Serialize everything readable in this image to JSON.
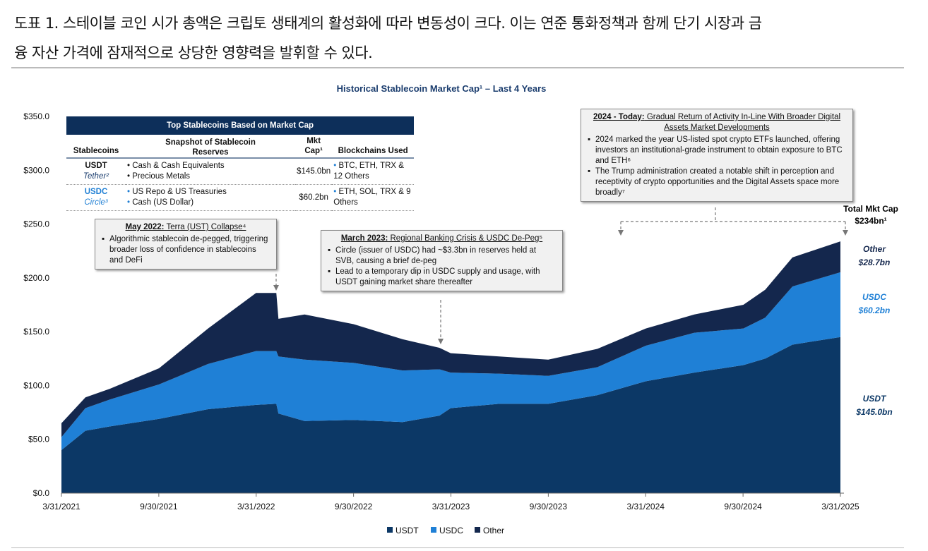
{
  "heading": {
    "line1": "도표 1. 스테이블 코인 시가 총액은 크립토 생태계의 활성화에 따라 변동성이 크다. 이는 연준 통화정책과 함께 단기 시장과 금",
    "line2": "융 자산 가격에 잠재적으로 상당한 영향력을 발휘할 수 있다."
  },
  "table": {
    "title": "Top Stablecoins Based on Market Cap",
    "headers": [
      "Stablecoins",
      "Snapshot of Stablecoin Reserves",
      "Mkt Cap¹",
      "Blockchains Used"
    ],
    "rows": [
      {
        "coin": "USDT",
        "issuer": "Tether²",
        "reserves": [
          "Cash & Cash Equivalents",
          "Precious Metals"
        ],
        "mktcap": "$145.0bn",
        "chains": "BTC, ETH, TRX & 12 Others"
      },
      {
        "coin": "USDC",
        "issuer": "Circle³",
        "reserves": [
          "US Repo & US Treasuries",
          "Cash (US Dollar)"
        ],
        "mktcap": "$60.2bn",
        "chains": "ETH, SOL, TRX & 9 Others"
      }
    ]
  },
  "annotations": {
    "terra": {
      "bold": "May 2022:",
      "title": " Terra (UST) Collapse⁴",
      "bullets": [
        "Algorithmic stablecoin de-pegged, triggering broader loss of confidence in stablecoins and DeFi"
      ]
    },
    "svb": {
      "bold": "March 2023:",
      "title": " Regional Banking Crisis & USDC De-Peg⁵",
      "bullets": [
        "Circle (issuer of USDC) had ~$3.3bn in reserves held at SVB, causing a brief de-peg",
        "Lead to a temporary dip in USDC supply and usage, with USDT gaining market share thereafter"
      ]
    },
    "today": {
      "bold": "2024 - Today:",
      "title": " Gradual Return of Activity In-Line With Broader Digital Assets Market Developments",
      "bullets": [
        "2024 marked the year US-listed spot crypto ETFs launched, offering investors an institutional-grade instrument to obtain exposure to BTC and ETH⁶",
        "The Trump administration created a notable shift in perception and receptivity of crypto opportunities and the Digital Assets space more broadly⁷"
      ]
    }
  },
  "right_labels": {
    "total": "Total Mkt Cap $234bn¹",
    "other_name": "Other",
    "other_val": "$28.7bn",
    "usdc_name": "USDC",
    "usdc_val": "$60.2bn",
    "usdt_name": "USDT",
    "usdt_val": "$145.0bn"
  },
  "chart_data": {
    "type": "area",
    "stacked": true,
    "title": "Historical Stablecoin Market Cap¹ – Last 4 Years",
    "xlabel": "",
    "ylabel": "",
    "ylim": [
      0,
      350
    ],
    "yticks": [
      "$0.0",
      "$50.0",
      "$100.0",
      "$150.0",
      "$200.0",
      "$250.0",
      "$300.0",
      "$350.0"
    ],
    "xticks": [
      "3/31/2021",
      "9/30/2021",
      "3/31/2022",
      "9/30/2022",
      "3/31/2023",
      "9/30/2023",
      "3/31/2024",
      "9/30/2024",
      "3/31/2025"
    ],
    "legend_position": "bottom",
    "x": [
      "2021-03-31",
      "2021-05-15",
      "2021-06-30",
      "2021-09-30",
      "2021-12-31",
      "2022-03-31",
      "2022-05-08",
      "2022-05-12",
      "2022-06-30",
      "2022-09-30",
      "2022-12-31",
      "2023-03-10",
      "2023-03-31",
      "2023-06-30",
      "2023-09-30",
      "2023-12-31",
      "2024-03-31",
      "2024-06-30",
      "2024-09-30",
      "2024-11-10",
      "2024-12-31",
      "2025-03-31"
    ],
    "series": [
      {
        "name": "USDT",
        "color": "#0c3866",
        "values": [
          40,
          58,
          62,
          69,
          78,
          82,
          83,
          74,
          67,
          68,
          66,
          72,
          79,
          83,
          83,
          91,
          104,
          112,
          119,
          125,
          138,
          145
        ]
      },
      {
        "name": "USDC",
        "color": "#1f80d6",
        "values": [
          12,
          21,
          25,
          32,
          42,
          50,
          49,
          53,
          57,
          53,
          48,
          43,
          33,
          28,
          26,
          26,
          33,
          37,
          34,
          38,
          54,
          60.2
        ]
      },
      {
        "name": "Other",
        "color": "#14274d",
        "values": [
          13,
          10,
          10,
          15,
          33,
          54,
          54,
          35,
          42,
          36,
          29,
          20,
          18,
          16,
          15,
          17,
          16,
          17,
          22,
          26,
          27,
          28.7
        ]
      }
    ]
  }
}
